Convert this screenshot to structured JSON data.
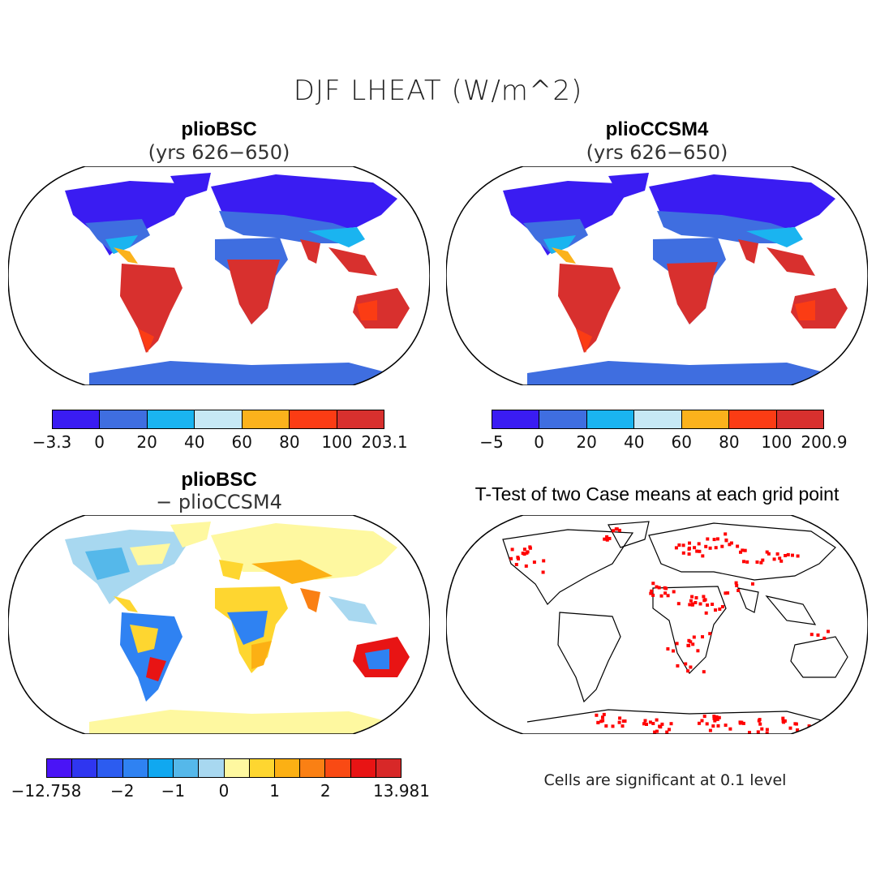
{
  "title": "DJF LHEAT (W/m^2)",
  "panels": {
    "top_left": {
      "title": "plioBSC",
      "subtitle": "(yrs 626−650)"
    },
    "top_right": {
      "title": "plioCCSM4",
      "subtitle": "(yrs 626−650)"
    },
    "bottom_left": {
      "title": "plioBSC",
      "subtitle": "− plioCCSM4"
    },
    "bottom_right": {
      "title": "T-Test of two Case means at each grid point"
    }
  },
  "colorbars": {
    "top_left": {
      "colors": [
        "#3a1cf2",
        "#3f6ee0",
        "#1ab4f0",
        "#c6e8f5",
        "#fbb21c",
        "#fb3c14",
        "#d8302e"
      ],
      "labels": [
        "−3.3",
        "0",
        "20",
        "40",
        "60",
        "80",
        "100",
        "203.1"
      ]
    },
    "top_right": {
      "colors": [
        "#3a1cf2",
        "#3f6ee0",
        "#1ab4f0",
        "#c6e8f5",
        "#fbb21c",
        "#fb3c14",
        "#d8302e"
      ],
      "labels": [
        "−5",
        "0",
        "20",
        "40",
        "60",
        "80",
        "100",
        "200.9"
      ]
    },
    "bottom_left": {
      "colors": [
        "#4a14f6",
        "#2f36f0",
        "#2c5cf0",
        "#2f82f2",
        "#10a8f0",
        "#55b8ea",
        "#a8d8f0",
        "#fef8a0",
        "#fed630",
        "#fcb014",
        "#fa8014",
        "#f94a14",
        "#e81414",
        "#d82828"
      ],
      "labels": [
        "−12.758",
        "−2",
        "−1",
        "0",
        "1",
        "2",
        "13.981"
      ]
    }
  },
  "note": "Cells are significant at 0.1 level",
  "colors": {
    "land_high": "#d8302e",
    "land_mid": "#3f6ee0",
    "land_low": "#3a1cf2",
    "significant": "#ff0000",
    "diff_neutral": "#fef8a0"
  }
}
